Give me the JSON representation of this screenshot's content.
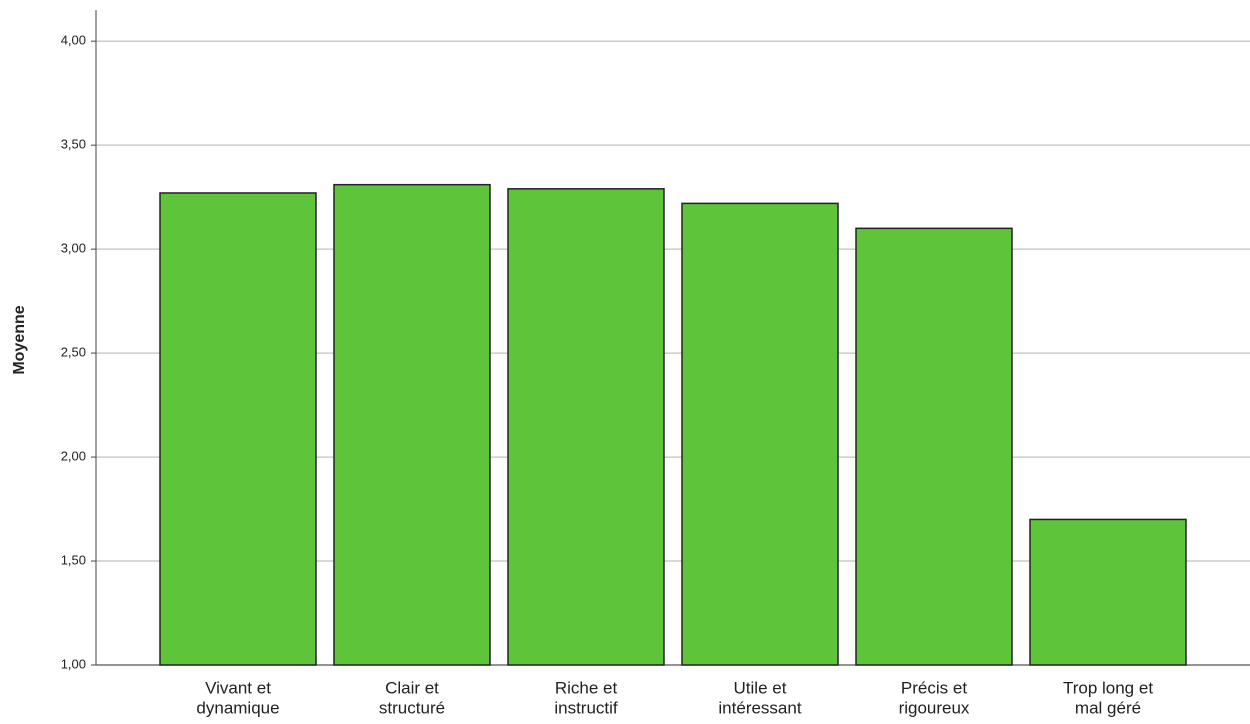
{
  "chart_data": {
    "type": "bar",
    "y_label": "Moyenne",
    "categories": [
      [
        "Vivant et",
        "dynamique"
      ],
      [
        "Clair et",
        "structuré"
      ],
      [
        "Riche et",
        "instructif"
      ],
      [
        "Utile et",
        "intéressant"
      ],
      [
        "Précis et",
        "rigoureux"
      ],
      [
        "Trop long et",
        "mal géré"
      ]
    ],
    "values": [
      3.27,
      3.31,
      3.29,
      3.22,
      3.1,
      1.7
    ],
    "color": "#5ec43a",
    "ylim": [
      1,
      4.15
    ],
    "yticks": [
      {
        "value": 1,
        "label": "1,00"
      },
      {
        "value": 1.5,
        "label": "1,50"
      },
      {
        "value": 2,
        "label": "2,00"
      },
      {
        "value": 2.5,
        "label": "2,50"
      },
      {
        "value": 3,
        "label": "3,00"
      },
      {
        "value": 3.5,
        "label": "3,50"
      },
      {
        "value": 4,
        "label": "4,00"
      }
    ],
    "grid": true
  }
}
